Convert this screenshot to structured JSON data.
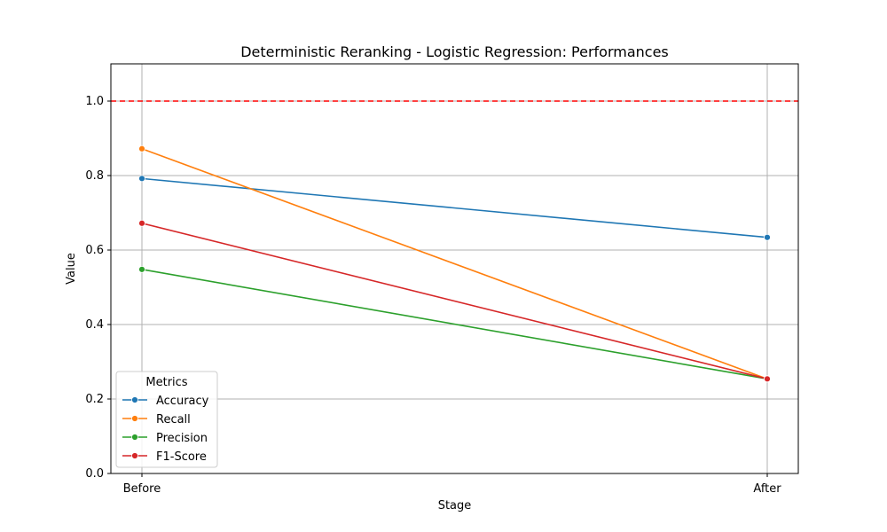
{
  "chart_data": {
    "type": "line",
    "title": "Deterministic Reranking - Logistic Regression: Performances",
    "xlabel": "Stage",
    "ylabel": "Value",
    "categories": [
      "Before",
      "After"
    ],
    "ylim": [
      0,
      1.1
    ],
    "yticks": [
      0.0,
      0.2,
      0.4,
      0.6,
      0.8,
      1.0
    ],
    "ytick_labels": [
      "0.0",
      "0.2",
      "0.4",
      "0.6",
      "0.8",
      "1.0"
    ],
    "grid": true,
    "reference_line": {
      "y": 1.0,
      "color": "#ff0000",
      "style": "dashed"
    },
    "legend": {
      "title": "Metrics",
      "placement": "lower-left"
    },
    "series": [
      {
        "name": "Accuracy",
        "color": "#1f77b4",
        "values": [
          0.792,
          0.634
        ]
      },
      {
        "name": "Recall",
        "color": "#ff7f0e",
        "values": [
          0.872,
          0.254
        ]
      },
      {
        "name": "Precision",
        "color": "#2ca02c",
        "values": [
          0.548,
          0.254
        ]
      },
      {
        "name": "F1-Score",
        "color": "#d62728",
        "values": [
          0.672,
          0.254
        ]
      }
    ]
  }
}
